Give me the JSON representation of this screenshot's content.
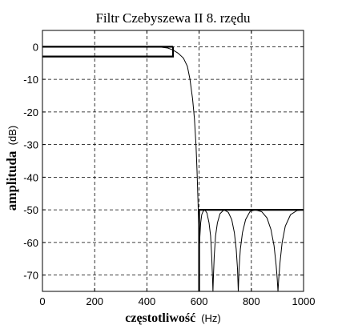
{
  "chart_data": {
    "type": "line",
    "title": "Filtr Czebyszewa  II  8. rzędu",
    "xlabel_main": "częstotliwość",
    "xlabel_unit": "(Hz)",
    "ylabel_main": "amplituda",
    "ylabel_unit": "(dB)",
    "xlim": [
      0,
      1000
    ],
    "ylim": [
      -75,
      5
    ],
    "xticks": [
      0,
      200,
      400,
      600,
      800,
      1000
    ],
    "yticks": [
      0,
      -10,
      -20,
      -30,
      -40,
      -50,
      -60,
      -70
    ],
    "grid": true,
    "series": [
      {
        "values": [
          [
            0,
            0
          ],
          [
            100,
            0
          ],
          [
            200,
            0
          ],
          [
            300,
            0
          ],
          [
            400,
            0
          ],
          [
            450,
            -0.1
          ],
          [
            480,
            -0.4
          ],
          [
            500,
            -1.0
          ],
          [
            520,
            -2.0
          ],
          [
            540,
            -3.5
          ],
          [
            555,
            -6
          ],
          [
            565,
            -10
          ],
          [
            575,
            -16
          ],
          [
            582,
            -22
          ],
          [
            588,
            -30
          ],
          [
            592,
            -38
          ],
          [
            596,
            -48
          ],
          [
            599,
            -57
          ],
          [
            601,
            -61
          ],
          [
            603,
            -58
          ],
          [
            606,
            -54
          ],
          [
            610,
            -51.5
          ],
          [
            615,
            -50.5
          ],
          [
            622,
            -50
          ],
          [
            630,
            -51
          ],
          [
            638,
            -54
          ],
          [
            644,
            -58
          ],
          [
            648,
            -64
          ],
          [
            651,
            -70
          ],
          [
            653,
            -75
          ],
          [
            655,
            -70
          ],
          [
            658,
            -64
          ],
          [
            663,
            -58
          ],
          [
            670,
            -54
          ],
          [
            680,
            -51.2
          ],
          [
            695,
            -50
          ],
          [
            712,
            -50.8
          ],
          [
            725,
            -53
          ],
          [
            735,
            -57
          ],
          [
            742,
            -62
          ],
          [
            747,
            -68
          ],
          [
            750,
            -75
          ],
          [
            753,
            -68
          ],
          [
            758,
            -62
          ],
          [
            766,
            -57
          ],
          [
            778,
            -53
          ],
          [
            795,
            -50.5
          ],
          [
            815,
            -50
          ],
          [
            840,
            -50.6
          ],
          [
            860,
            -52.5
          ],
          [
            875,
            -56
          ],
          [
            887,
            -61
          ],
          [
            895,
            -67
          ],
          [
            899,
            -71
          ],
          [
            902,
            -75
          ],
          [
            905,
            -71
          ],
          [
            910,
            -66
          ],
          [
            918,
            -60
          ],
          [
            930,
            -55
          ],
          [
            950,
            -51.5
          ],
          [
            975,
            -50.2
          ],
          [
            1000,
            -50
          ]
        ]
      }
    ],
    "limit_lines": [
      {
        "points": [
          [
            0,
            0
          ],
          [
            500,
            0
          ]
        ]
      },
      {
        "points": [
          [
            0,
            -3
          ],
          [
            500,
            -3
          ],
          [
            500,
            0
          ]
        ]
      },
      {
        "points": [
          [
            600,
            -75
          ],
          [
            600,
            -50
          ],
          [
            1000,
            -50
          ]
        ]
      }
    ]
  }
}
